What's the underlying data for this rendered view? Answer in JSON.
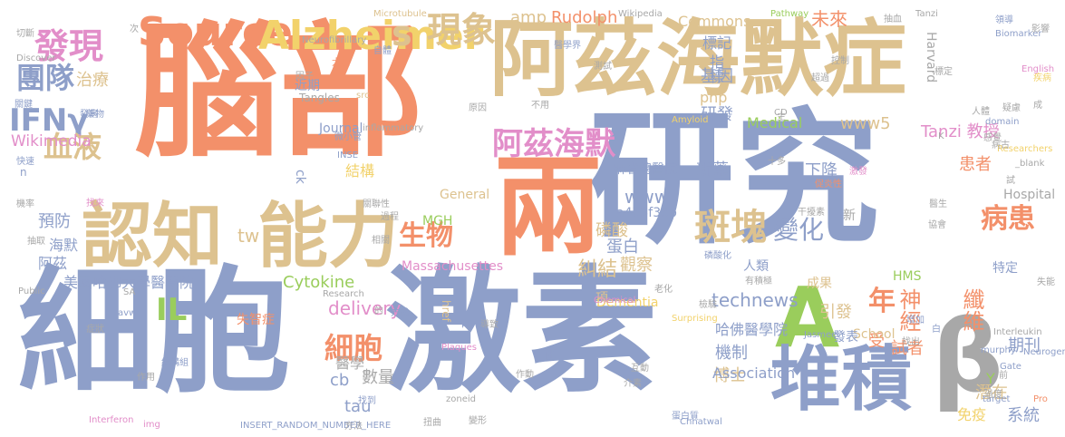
{
  "palette": {
    "orange": "#f3906a",
    "blue": "#8e9fc9",
    "tan": "#ddc28f",
    "green": "#9acd5c",
    "pink": "#e28ec9",
    "gray": "#a8a8a8",
    "yellow": "#f2d26b"
  },
  "words": [
    {
      "t": "腦部",
      "c": "orange"
    },
    {
      "t": "研究",
      "c": "blue"
    },
    {
      "t": "細胞",
      "c": "blue"
    },
    {
      "t": "激素",
      "c": "blue"
    },
    {
      "t": "阿茲海默症",
      "c": "tan"
    },
    {
      "t": "兩",
      "c": "orange"
    },
    {
      "t": "A",
      "c": "green"
    },
    {
      "t": "β",
      "c": "gray"
    },
    {
      "t": "堆積",
      "c": "blue"
    },
    {
      "t": "認知",
      "c": "tan"
    },
    {
      "t": "能力",
      "c": "tan"
    },
    {
      "t": "Source",
      "c": "orange"
    },
    {
      "t": "Alzheimer",
      "c": "yellow"
    },
    {
      "t": "s",
      "c": "tan"
    },
    {
      "t": "現象",
      "c": "tan"
    },
    {
      "t": "發現",
      "c": "pink"
    },
    {
      "t": "團隊",
      "c": "blue"
    },
    {
      "t": "IFNγ",
      "c": "blue"
    },
    {
      "t": "治療",
      "c": "tan"
    },
    {
      "t": "血液",
      "c": "tan"
    },
    {
      "t": "Wikimedia",
      "c": "pink"
    },
    {
      "t": "阿茲海默",
      "c": "pink"
    },
    {
      "t": "生物",
      "c": "orange"
    },
    {
      "t": "IL",
      "c": "green"
    },
    {
      "t": "斑塊",
      "c": "tan"
    },
    {
      "t": "變化",
      "c": "blue"
    },
    {
      "t": "病患",
      "c": "orange"
    },
    {
      "t": "年",
      "c": "orange"
    },
    {
      "t": "神經",
      "c": "orange"
    },
    {
      "t": "纖維",
      "c": "orange"
    },
    {
      "t": "糾結",
      "c": "tan"
    },
    {
      "t": "細胞",
      "c": "orange"
    },
    {
      "t": "Cytokine",
      "c": "green"
    },
    {
      "t": "delivery",
      "c": "pink"
    },
    {
      "t": "tw",
      "c": "tan"
    },
    {
      "t": "amp",
      "c": "tan"
    },
    {
      "t": "Rudolph",
      "c": "orange"
    },
    {
      "t": "Commons",
      "c": "tan"
    },
    {
      "t": "未來",
      "c": "orange"
    },
    {
      "t": "標記",
      "c": "blue"
    },
    {
      "t": "基因",
      "c": "blue"
    },
    {
      "t": "研發",
      "c": "blue"
    },
    {
      "t": "Tanzi 教授",
      "c": "pink"
    },
    {
      "t": "www5",
      "c": "tan"
    },
    {
      "t": "www",
      "c": "blue"
    },
    {
      "t": "a4b3f35b",
      "c": "blue"
    },
    {
      "t": "磷酸",
      "c": "tan"
    },
    {
      "t": "蛋白",
      "c": "blue"
    },
    {
      "t": "新藥",
      "c": "blue"
    },
    {
      "t": "下降",
      "c": "blue"
    },
    {
      "t": "患者",
      "c": "orange"
    },
    {
      "t": "麻省總醫院",
      "c": "blue"
    },
    {
      "t": "結構",
      "c": "yellow"
    },
    {
      "t": "觀察",
      "c": "tan"
    },
    {
      "t": "technews",
      "c": "blue"
    },
    {
      "t": "哈佛醫學院",
      "c": "blue"
    },
    {
      "t": "引發",
      "c": "tan"
    },
    {
      "t": "受",
      "c": "orange"
    },
    {
      "t": "試者",
      "c": "orange"
    },
    {
      "t": "期刊",
      "c": "blue"
    },
    {
      "t": "博士",
      "c": "tan"
    },
    {
      "t": "機制",
      "c": "blue"
    },
    {
      "t": "潛在",
      "c": "tan"
    },
    {
      "t": "免疫",
      "c": "yellow"
    },
    {
      "t": "系統",
      "c": "blue"
    },
    {
      "t": "tau",
      "c": "blue"
    },
    {
      "t": "cb",
      "c": "blue"
    },
    {
      "t": "數量",
      "c": "gray"
    },
    {
      "t": "預防",
      "c": "blue"
    },
    {
      "t": "海默",
      "c": "blue"
    },
    {
      "t": "阿茲",
      "c": "blue"
    },
    {
      "t": "美國哈佛大學醫學院",
      "c": "blue"
    },
    {
      "t": "失智症",
      "c": "orange"
    },
    {
      "t": "MGH",
      "c": "green"
    },
    {
      "t": "Dementia",
      "c": "yellow"
    },
    {
      "t": "Massachusettes",
      "c": "pink"
    },
    {
      "t": "Hospital",
      "c": "gray"
    },
    {
      "t": "School",
      "c": "tan"
    },
    {
      "t": "成果",
      "c": "tan"
    },
    {
      "t": "HMS",
      "c": "green"
    },
    {
      "t": "Association",
      "c": "blue"
    },
    {
      "t": "Medical",
      "c": "green"
    },
    {
      "t": "Journal",
      "c": "blue"
    },
    {
      "t": "php",
      "c": "tan"
    },
    {
      "t": "指標",
      "c": "blue"
    },
    {
      "t": "近期",
      "c": "blue"
    },
    {
      "t": "General",
      "c": "tan"
    },
    {
      "t": "特定",
      "c": "blue"
    },
    {
      "t": "人類",
      "c": "blue"
    },
    {
      "t": "發表",
      "c": "blue"
    },
    {
      "t": "化",
      "c": "blue"
    },
    {
      "t": "項",
      "c": "tan"
    },
    {
      "t": "醫學",
      "c": "gray"
    },
    {
      "t": "Y",
      "c": "green"
    },
    {
      "t": "新",
      "c": "gray"
    },
    {
      "t": "n",
      "c": "blue"
    },
    {
      "t": "ck",
      "c": "blue"
    },
    {
      "t": "Harvard",
      "c": "gray"
    },
    {
      "t": "Tangles",
      "c": "gray"
    },
    {
      "t": "href",
      "c": "tan"
    },
    {
      "t": "Microtubule",
      "c": "tan"
    },
    {
      "t": "Wikipedia",
      "c": "gray"
    },
    {
      "t": "Pathway",
      "c": "green"
    },
    {
      "t": "Tanzi",
      "c": "gray"
    },
    {
      "t": "Biomarker",
      "c": "blue"
    },
    {
      "t": "Neurofibrillary",
      "c": "gray"
    },
    {
      "t": "English",
      "c": "pink"
    },
    {
      "t": "Discover",
      "c": "gray"
    },
    {
      "t": "Interferon",
      "c": "pink"
    },
    {
      "t": "Researchers",
      "c": "yellow"
    },
    {
      "t": "_blank",
      "c": "gray"
    },
    {
      "t": "Amyloid",
      "c": "yellow"
    },
    {
      "t": "Surprising",
      "c": "yellow"
    },
    {
      "t": "Chemical",
      "c": "pink"
    },
    {
      "t": "Plaques",
      "c": "pink"
    },
    {
      "t": "Neurogenie",
      "c": "blue"
    },
    {
      "t": "Interleukin",
      "c": "gray"
    },
    {
      "t": "Chhatwal",
      "c": "blue"
    },
    {
      "t": "Jasmeer",
      "c": "blue"
    },
    {
      "t": "Gate",
      "c": "blue"
    },
    {
      "t": "Research",
      "c": "gray"
    },
    {
      "t": "INSERT_RANDOM_NUMBER_HERE",
      "c": "blue"
    },
    {
      "t": "zoneid",
      "c": "gray"
    },
    {
      "t": "domain",
      "c": "blue"
    },
    {
      "t": "inflammatory",
      "c": "gray"
    },
    {
      "t": "src",
      "c": "tan"
    },
    {
      "t": "Public",
      "c": "gray"
    },
    {
      "t": "img",
      "c": "pink"
    },
    {
      "t": "target",
      "c": "blue"
    },
    {
      "t": "Pro",
      "c": "orange"
    },
    {
      "t": "murphy",
      "c": "blue"
    },
    {
      "t": "avw",
      "c": "blue"
    },
    {
      "t": "SA",
      "c": "gray"
    },
    {
      "t": "INSE",
      "c": "blue"
    },
    {
      "t": "CD",
      "c": "gray"
    },
    {
      "t": "K",
      "c": "gray"
    },
    {
      "t": "切斷",
      "c": "gray"
    },
    {
      "t": "疾病",
      "c": "yellow"
    },
    {
      "t": "關鍵",
      "c": "blue"
    },
    {
      "t": "藥物",
      "c": "blue"
    },
    {
      "t": "快速",
      "c": "blue"
    },
    {
      "t": "機率",
      "c": "gray"
    },
    {
      "t": "抽取",
      "c": "gray"
    },
    {
      "t": "找來",
      "c": "pink"
    },
    {
      "t": "症狀",
      "c": "gray"
    },
    {
      "t": "作用",
      "c": "gray"
    },
    {
      "t": "結構組",
      "c": "blue"
    },
    {
      "t": "找到",
      "c": "blue"
    },
    {
      "t": "過程",
      "c": "gray"
    },
    {
      "t": "相關",
      "c": "gray"
    },
    {
      "t": "介素",
      "c": "gray"
    },
    {
      "t": "蛋白質",
      "c": "blue"
    },
    {
      "t": "互動",
      "c": "gray"
    },
    {
      "t": "變形",
      "c": "gray"
    },
    {
      "t": "導致",
      "c": "gray"
    },
    {
      "t": "方式",
      "c": "blue"
    },
    {
      "t": "扭曲",
      "c": "gray"
    },
    {
      "t": "方法",
      "c": "gray"
    },
    {
      "t": "因子",
      "c": "gray"
    },
    {
      "t": "關聯性",
      "c": "gray"
    },
    {
      "t": "微小管",
      "c": "blue"
    },
    {
      "t": "作動",
      "c": "gray"
    },
    {
      "t": "原因",
      "c": "gray"
    },
    {
      "t": "測試",
      "c": "gray"
    },
    {
      "t": "醫學界",
      "c": "blue"
    },
    {
      "t": "磷酸化",
      "c": "blue"
    },
    {
      "t": "有積極",
      "c": "gray"
    },
    {
      "t": "老化",
      "c": "gray"
    },
    {
      "t": "檢驗",
      "c": "gray"
    },
    {
      "t": "增加",
      "c": "blue"
    },
    {
      "t": "干擾素",
      "c": "gray"
    },
    {
      "t": "協會",
      "c": "gray"
    },
    {
      "t": "醫生",
      "c": "gray"
    },
    {
      "t": "病古",
      "c": "gray"
    },
    {
      "t": "激發",
      "c": "pink"
    },
    {
      "t": "十多",
      "c": "gray"
    },
    {
      "t": "促炎性",
      "c": "orange"
    },
    {
      "t": "失能",
      "c": "gray"
    },
    {
      "t": "抽血",
      "c": "gray"
    },
    {
      "t": "領導",
      "c": "blue"
    },
    {
      "t": "影響",
      "c": "gray"
    },
    {
      "t": "標定",
      "c": "gray"
    },
    {
      "t": "控制",
      "c": "gray"
    },
    {
      "t": "自體",
      "c": "blue"
    },
    {
      "t": "大幅",
      "c": "orange"
    },
    {
      "t": "不用",
      "c": "gray"
    },
    {
      "t": "白",
      "c": "blue"
    },
    {
      "t": "找出",
      "c": "gray"
    },
    {
      "t": "過度",
      "c": "gray"
    },
    {
      "t": "感覺",
      "c": "gray"
    },
    {
      "t": "試",
      "c": "gray"
    },
    {
      "t": "次",
      "c": "gray"
    },
    {
      "t": "發病",
      "c": "blue"
    },
    {
      "t": "成",
      "c": "gray"
    },
    {
      "t": "前",
      "c": "gray"
    },
    {
      "t": "的",
      "c": "gray"
    },
    {
      "t": "疑慮",
      "c": "gray"
    },
    {
      "t": "人體",
      "c": "gray"
    },
    {
      "t": "主",
      "c": "gray"
    },
    {
      "t": "超過",
      "c": "gray"
    }
  ]
}
